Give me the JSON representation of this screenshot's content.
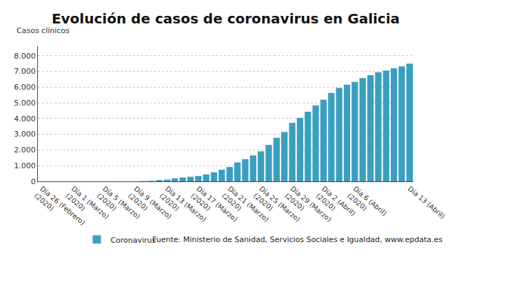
{
  "chart_data": {
    "type": "bar",
    "title": "Evolución de casos de coronavirus en Galicia",
    "ylabel": "Casos clínicos",
    "annotations": [
      "Fuente: Ministerio de Sanidad, Servicios Sociales e Igualdad, www.epdata.es"
    ],
    "categories": [
      "Día 26 (Febrero)\n(2020)",
      null,
      null,
      null,
      "Día 1 (Marzo)\n(2020)",
      null,
      null,
      null,
      "Día 5 (Marzo)\n(2020)",
      null,
      null,
      null,
      "Día 9 (Marzo)\n(2020)",
      null,
      null,
      null,
      "Día 13 (Marzo)\n(2020)",
      null,
      null,
      null,
      "Día 17 (Marzo)\n(2020)",
      null,
      null,
      null,
      "Día 21 (Marzo)\n(2020)",
      null,
      null,
      null,
      "Día 25 (Marzo)\n(2020)",
      null,
      null,
      null,
      "Día 29 (Marzo)\n(2020)",
      null,
      null,
      null,
      "Día 2 (Abril)\n(2020)",
      null,
      null,
      null,
      "Día 6 (Abril)\n(2020)",
      null,
      null,
      null,
      null,
      null,
      null,
      "Día 13 (Abril)"
    ],
    "series": [
      {
        "name": "Coronavirus",
        "color": "#3a9fbf",
        "values": [
          0,
          0,
          0,
          0,
          0,
          0,
          0,
          0,
          1,
          2,
          4,
          6,
          6,
          18,
          35,
          85,
          115,
          195,
          245,
          292,
          341,
          439,
          577,
          739,
          915,
          1208,
          1415,
          1653,
          1913,
          2322,
          2772,
          3139,
          3723,
          4039,
          4432,
          4842,
          5198,
          5625,
          5944,
          6150,
          6331,
          6569,
          6758,
          6946,
          7050,
          7191,
          7319,
          7494
        ]
      }
    ],
    "ylim": [
      0,
      8600
    ],
    "yticks": [
      0,
      {
        "value": 1000,
        "label": "1.000"
      },
      {
        "value": 2000,
        "label": "2.000"
      },
      {
        "value": 3000,
        "label": "3.000"
      },
      {
        "value": 4000,
        "label": "4.000"
      },
      {
        "value": 5000,
        "label": "5.000"
      },
      {
        "value": 6000,
        "label": "6.000"
      },
      {
        "value": 7000,
        "label": "7.000"
      },
      {
        "value": 8000,
        "label": "8.000"
      }
    ],
    "grid": true,
    "legend": "bottom"
  }
}
